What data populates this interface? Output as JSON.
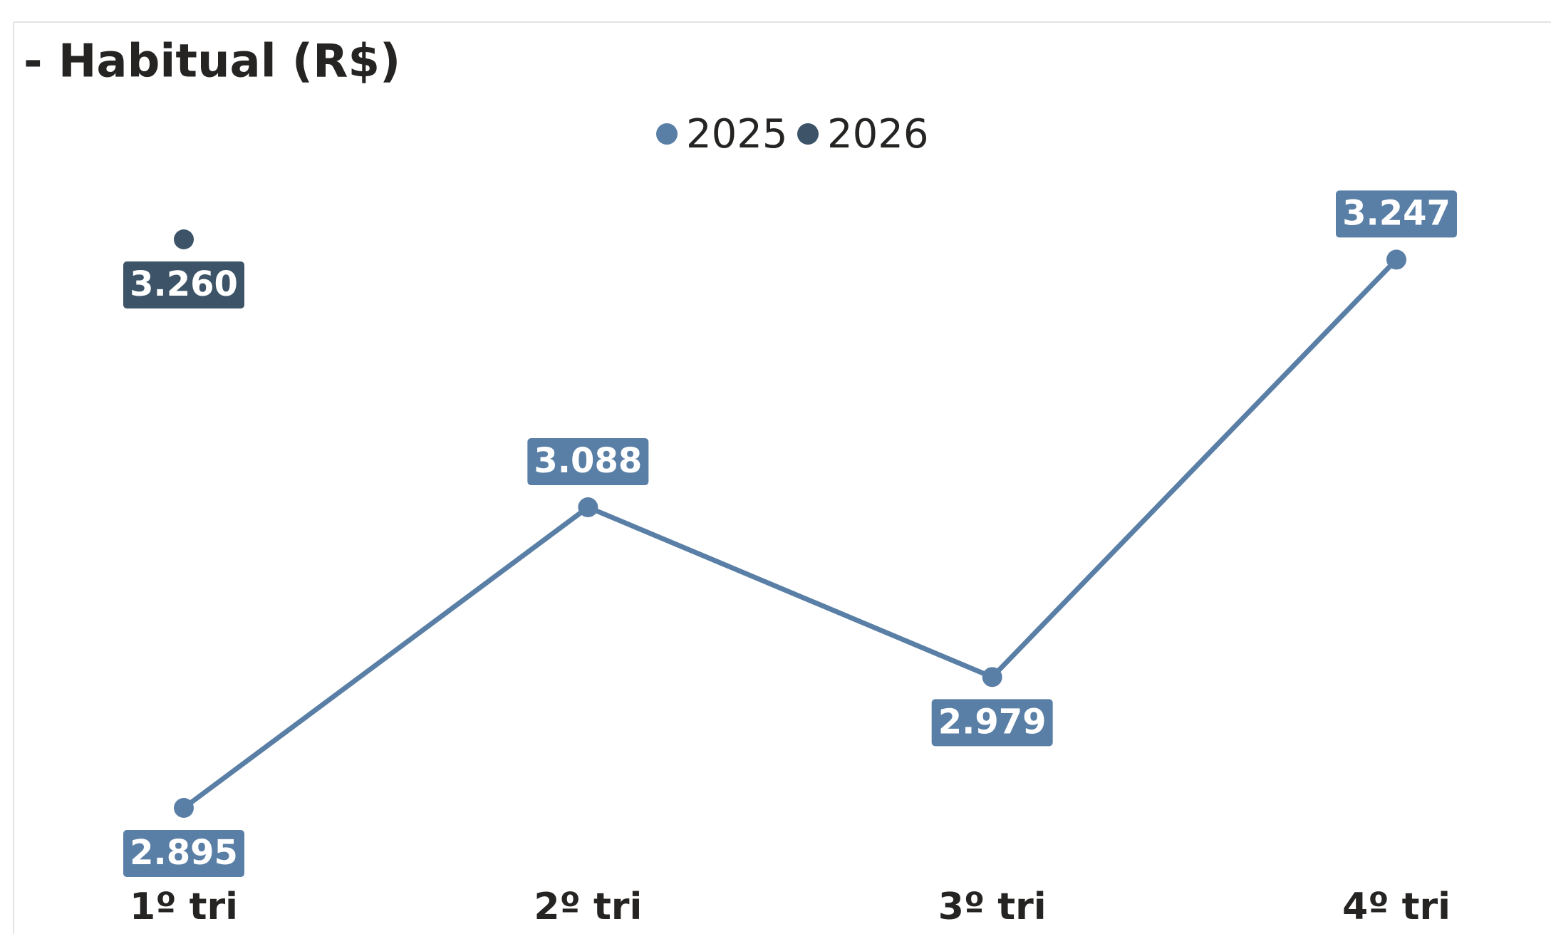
{
  "chart_data": {
    "type": "line",
    "title": "- Habitual (R$)",
    "categories": [
      "1º tri",
      "2º tri",
      "3º tri",
      "4º tri"
    ],
    "series": [
      {
        "name": "2025",
        "color": "#5a7fa6",
        "values": [
          2895,
          3088,
          2979,
          3247
        ],
        "value_labels": [
          "2.895",
          "3.088",
          "2.979",
          "3.247"
        ]
      },
      {
        "name": "2026",
        "color": "#3d5468",
        "values": [
          3260,
          null,
          null,
          null
        ],
        "value_labels": [
          "3.260",
          null,
          null,
          null
        ]
      }
    ],
    "legend": "top"
  }
}
